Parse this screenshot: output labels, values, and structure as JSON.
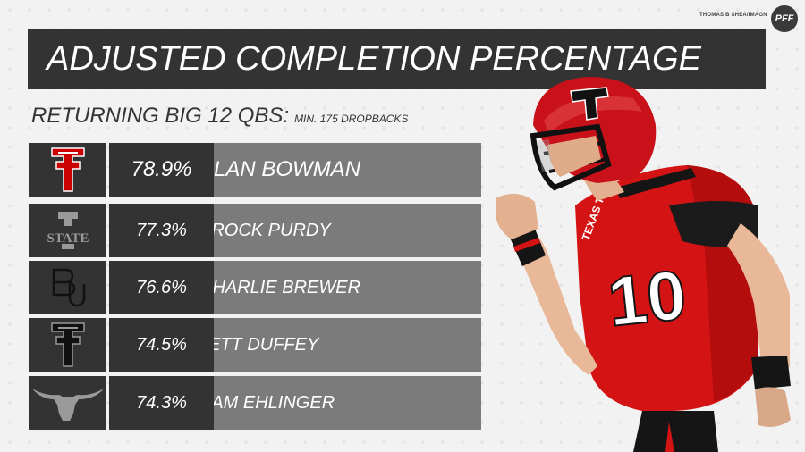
{
  "header": {
    "credit": "THOMAS B SHEA/IMAGN",
    "brand": "PFF"
  },
  "chart_data": {
    "type": "table",
    "title": "ADJUSTED COMPLETION PERCENTAGE",
    "subtitle": "RETURNING BIG 12 QBS:",
    "note": "MIN. 175 DROPBACKS",
    "rows": [
      {
        "logo": "texas-tech-logo",
        "value": "78.9%",
        "name": "ALAN BOWMAN"
      },
      {
        "logo": "iowa-state-logo",
        "value": "77.3%",
        "name": "BROCK PURDY"
      },
      {
        "logo": "baylor-logo",
        "value": "76.6%",
        "name": "CHARLIE BREWER"
      },
      {
        "logo": "texas-tech-logo",
        "value": "74.5%",
        "name": "JETT DUFFEY"
      },
      {
        "logo": "texas-longhorn-logo",
        "value": "74.3%",
        "name": "SAM EHLINGER"
      }
    ],
    "colors": {
      "accent": "#cc0000",
      "dark_box": "#333333",
      "name_box": "#7b7b7b"
    }
  }
}
